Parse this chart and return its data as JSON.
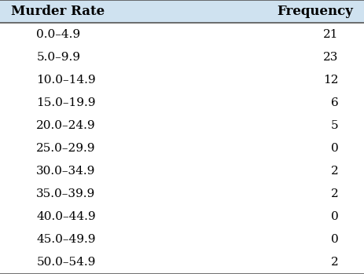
{
  "header": [
    "Murder Rate",
    "Frequency"
  ],
  "rows": [
    [
      "0.0–4.9",
      "21"
    ],
    [
      "5.0–9.9",
      "23"
    ],
    [
      "10.0–14.9",
      "12"
    ],
    [
      "15.0–19.9",
      "6"
    ],
    [
      "20.0–24.9",
      "5"
    ],
    [
      "25.0–29.9",
      "0"
    ],
    [
      "30.0–34.9",
      "2"
    ],
    [
      "35.0–39.9",
      "2"
    ],
    [
      "40.0–44.9",
      "0"
    ],
    [
      "45.0–49.9",
      "0"
    ],
    [
      "50.0–54.9",
      "2"
    ]
  ],
  "header_bg_color": "#cfe2f0",
  "header_text_color": "#000000",
  "row_bg_color": "#ffffff",
  "row_text_color": "#000000",
  "border_color": "#555555",
  "font_size": 11,
  "header_font_size": 12
}
